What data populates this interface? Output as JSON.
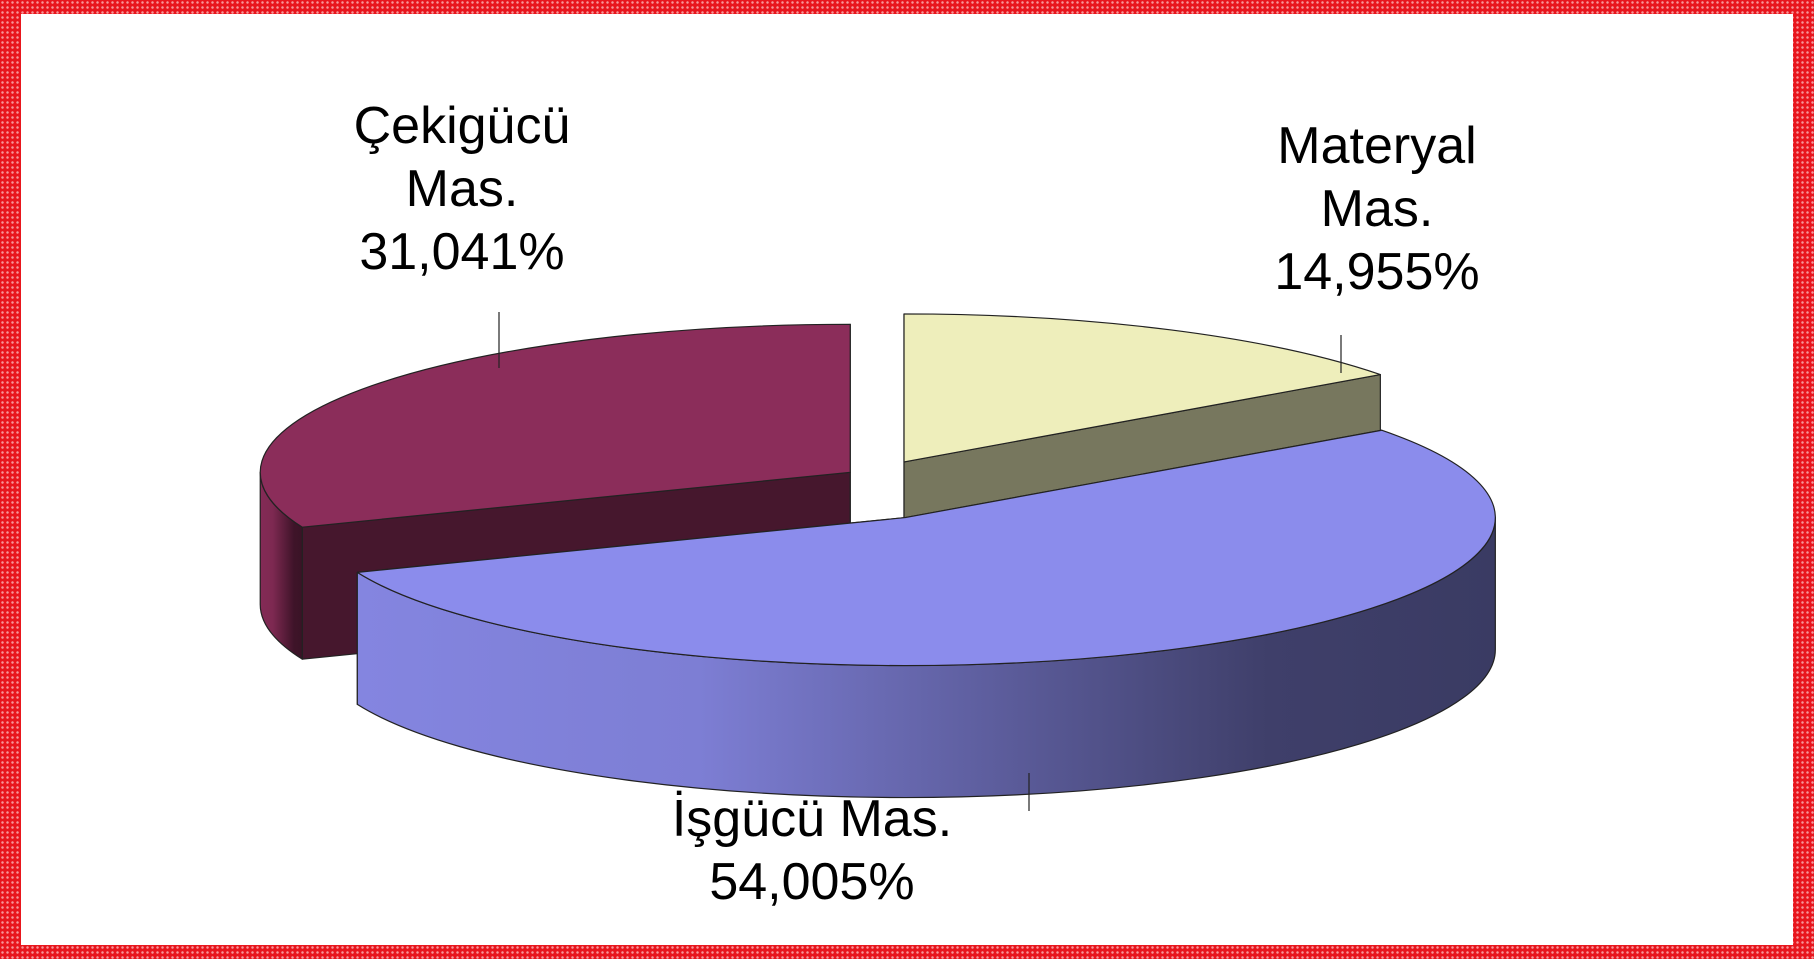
{
  "chart_data": {
    "type": "pie3d",
    "categories": [
      "Çekigücü Mas.",
      "Materyal Mas.",
      "İşgücü Mas."
    ],
    "values": [
      31.041,
      14.955,
      54.005
    ],
    "value_labels": [
      "31,041%",
      "14,955%",
      "54,005%"
    ],
    "colors": [
      "#8b2d5a",
      "#eeeebb",
      "#8b8cec"
    ]
  }
}
